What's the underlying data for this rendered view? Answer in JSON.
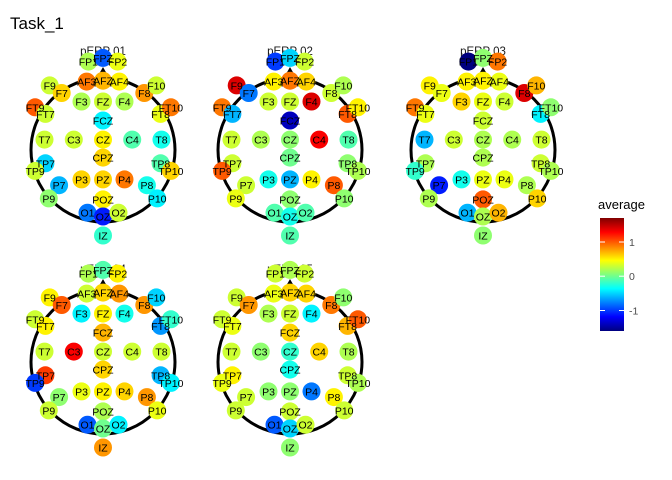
{
  "chart_data": {
    "type": "topographic scalp map",
    "title": "Task_1",
    "legend": {
      "title": "average",
      "ticks": [
        1,
        0,
        -1
      ],
      "range": [
        -1.6,
        1.7
      ],
      "palette": [
        "#00007f",
        "#0000ff",
        "#007fff",
        "#00ffff",
        "#7fff7f",
        "#ffff00",
        "#ff7f00",
        "#ff0000",
        "#7f0000"
      ],
      "position": "right"
    },
    "channels": [
      {
        "name": "FP1",
        "pos": [
          -0.17,
          0.93
        ]
      },
      {
        "name": "FPZ",
        "pos": [
          0.0,
          0.97
        ]
      },
      {
        "name": "FP2",
        "pos": [
          0.17,
          0.93
        ]
      },
      {
        "name": "F9",
        "pos": [
          -0.62,
          0.68
        ]
      },
      {
        "name": "F7",
        "pos": [
          -0.48,
          0.6
        ]
      },
      {
        "name": "AF3",
        "pos": [
          -0.19,
          0.72
        ]
      },
      {
        "name": "AFZ",
        "pos": [
          0.0,
          0.73
        ]
      },
      {
        "name": "AF4",
        "pos": [
          0.19,
          0.72
        ]
      },
      {
        "name": "F8",
        "pos": [
          0.48,
          0.6
        ]
      },
      {
        "name": "F10",
        "pos": [
          0.62,
          0.68
        ]
      },
      {
        "name": "F3",
        "pos": [
          -0.25,
          0.51
        ]
      },
      {
        "name": "FZ",
        "pos": [
          0.0,
          0.51
        ]
      },
      {
        "name": "F4",
        "pos": [
          0.25,
          0.51
        ]
      },
      {
        "name": "FT9",
        "pos": [
          -0.79,
          0.45
        ]
      },
      {
        "name": "FT7",
        "pos": [
          -0.67,
          0.38
        ]
      },
      {
        "name": "FCZ",
        "pos": [
          0.0,
          0.31
        ]
      },
      {
        "name": "FT8",
        "pos": [
          0.67,
          0.38
        ]
      },
      {
        "name": "FT10",
        "pos": [
          0.79,
          0.45
        ]
      },
      {
        "name": "T7",
        "pos": [
          -0.68,
          0.11
        ]
      },
      {
        "name": "C3",
        "pos": [
          -0.34,
          0.11
        ]
      },
      {
        "name": "CZ",
        "pos": [
          0.0,
          0.11
        ]
      },
      {
        "name": "C4",
        "pos": [
          0.34,
          0.11
        ]
      },
      {
        "name": "T8",
        "pos": [
          0.68,
          0.11
        ]
      },
      {
        "name": "CPZ",
        "pos": [
          0.0,
          -0.08
        ]
      },
      {
        "name": "TP7",
        "pos": [
          -0.67,
          -0.14
        ]
      },
      {
        "name": "TP9",
        "pos": [
          -0.79,
          -0.22
        ]
      },
      {
        "name": "TP8",
        "pos": [
          0.67,
          -0.14
        ]
      },
      {
        "name": "TP10",
        "pos": [
          0.79,
          -0.22
        ]
      },
      {
        "name": "P7",
        "pos": [
          -0.51,
          -0.37
        ]
      },
      {
        "name": "P3",
        "pos": [
          -0.25,
          -0.31
        ]
      },
      {
        "name": "PZ",
        "pos": [
          0.0,
          -0.31
        ]
      },
      {
        "name": "P4",
        "pos": [
          0.25,
          -0.31
        ]
      },
      {
        "name": "P8",
        "pos": [
          0.51,
          -0.37
        ]
      },
      {
        "name": "P9",
        "pos": [
          -0.63,
          -0.51
        ]
      },
      {
        "name": "P10",
        "pos": [
          0.63,
          -0.51
        ]
      },
      {
        "name": "POZ",
        "pos": [
          0.0,
          -0.52
        ]
      },
      {
        "name": "O1",
        "pos": [
          -0.18,
          -0.66
        ]
      },
      {
        "name": "OZ",
        "pos": [
          0.0,
          -0.7
        ]
      },
      {
        "name": "O2",
        "pos": [
          0.18,
          -0.66
        ]
      },
      {
        "name": "IZ",
        "pos": [
          0.0,
          -0.9
        ]
      }
    ],
    "panels": [
      {
        "title": "pERP 01",
        "values": {
          "FP1": 0.2,
          "FPZ": -0.9,
          "FP2": 0.4,
          "F9": 0.3,
          "F7": 0.6,
          "AF3": 0.9,
          "AFZ": 0.7,
          "AF4": 0.5,
          "F8": 0.8,
          "F10": 0.3,
          "F3": 0.2,
          "FZ": 0.3,
          "F4": 0.2,
          "FT9": 1.0,
          "FT7": 0.3,
          "FCZ": -0.4,
          "FT8": 0.4,
          "FT10": 0.9,
          "T7": 0.3,
          "C3": 0.3,
          "CZ": 0.5,
          "C4": -0.1,
          "T8": -0.3,
          "CPZ": 0.6,
          "TP7": -0.5,
          "TP9": 0.3,
          "TP8": -0.1,
          "TP10": 0.6,
          "P7": -0.6,
          "P3": 0.6,
          "PZ": 0.6,
          "P4": 0.9,
          "P8": -0.3,
          "P9": 0.1,
          "P10": -0.4,
          "POZ": 0.5,
          "O1": -0.8,
          "OZ": -1.1,
          "O2": 0.3,
          "IZ": -0.2
        }
      },
      {
        "title": "pERP 02",
        "values": {
          "FP1": -1.0,
          "FPZ": -0.5,
          "FP2": 0.3,
          "F9": 1.4,
          "F7": -0.8,
          "AF3": 0.5,
          "AFZ": 0.9,
          "AF4": 0.6,
          "F8": 0.3,
          "F10": 0.2,
          "F3": 0.3,
          "FZ": 0.3,
          "F4": 1.4,
          "FT9": 0.9,
          "FT7": -0.6,
          "FCZ": -1.4,
          "FT8": 1.0,
          "FT10": 0.5,
          "T7": 0.3,
          "C3": 0.2,
          "CZ": 0.1,
          "C4": 1.3,
          "T8": -0.1,
          "CPZ": 0.0,
          "TP7": 0.3,
          "TP9": 1.0,
          "TP8": 0.1,
          "TP10": 0.2,
          "P7": 0.3,
          "P3": -0.3,
          "PZ": -0.6,
          "P4": 0.5,
          "P8": 1.0,
          "P9": 0.4,
          "P10": 0.1,
          "POZ": 0.1,
          "O1": -0.1,
          "OZ": -0.3,
          "O2": -0.1,
          "IZ": -0.1
        }
      },
      {
        "title": "pERP 03",
        "values": {
          "FP1": -1.6,
          "FPZ": 0.1,
          "FP2": 0.9,
          "F9": 0.5,
          "F7": 0.4,
          "AF3": 0.5,
          "AFZ": 0.5,
          "AF4": 0.4,
          "F8": 1.4,
          "F10": 0.7,
          "F3": 0.6,
          "FZ": 0.4,
          "F4": 0.3,
          "FT9": 0.9,
          "FT7": 0.4,
          "FCZ": 0.3,
          "FT8": -0.4,
          "FT10": 0.1,
          "T7": -0.6,
          "C3": 0.3,
          "CZ": 0.2,
          "C4": 0.2,
          "T8": 0.3,
          "CPZ": 0.2,
          "TP7": 0.2,
          "TP9": -0.2,
          "TP8": 0.3,
          "TP10": 0.2,
          "P7": -1.1,
          "P3": -0.3,
          "PZ": 0.4,
          "P4": 0.4,
          "P8": 0.2,
          "P9": 0.2,
          "P10": 0.6,
          "POZ": 1.0,
          "O1": -0.6,
          "OZ": 0.2,
          "O2": 0.7,
          "IZ": 0.1
        }
      },
      {
        "title": "pERP 04",
        "values": {
          "FP1": 0.2,
          "FPZ": -0.1,
          "FP2": 0.5,
          "F9": 0.5,
          "F7": 1.0,
          "AF3": 0.3,
          "AFZ": 0.6,
          "AF4": 0.8,
          "F8": 0.8,
          "F10": -0.5,
          "F3": -0.4,
          "FZ": 0.5,
          "F4": -0.3,
          "FT9": 0.3,
          "FT7": 0.5,
          "FCZ": 0.7,
          "FT8": -0.7,
          "FT10": -0.2,
          "T7": 0.3,
          "C3": 1.3,
          "CZ": 0.3,
          "C4": 0.3,
          "T8": 0.3,
          "CPZ": 0.6,
          "TP7": 1.1,
          "TP9": -1.0,
          "TP8": -0.6,
          "TP10": -0.4,
          "P7": 0.1,
          "P3": 0.4,
          "PZ": 0.5,
          "P4": 0.6,
          "P8": 0.8,
          "P9": 0.3,
          "P10": 0.4,
          "POZ": 0.2,
          "O1": -0.9,
          "OZ": 0.0,
          "O2": -0.4,
          "IZ": 0.8
        }
      },
      {
        "title": "pERP 05",
        "values": {
          "FP1": 0.3,
          "FPZ": 0.2,
          "FP2": 0.3,
          "F9": 0.3,
          "F7": 0.8,
          "AF3": 0.4,
          "AFZ": 0.6,
          "AF4": 0.6,
          "F8": 0.9,
          "F10": 0.1,
          "F3": 0.2,
          "FZ": 0.3,
          "F4": -0.4,
          "FT9": 0.3,
          "FT7": 0.4,
          "FCZ": 0.6,
          "FT8": 0.7,
          "FT10": 1.0,
          "T7": 0.3,
          "C3": 0.1,
          "CZ": -0.2,
          "C4": 0.6,
          "T8": 0.2,
          "CPZ": -0.3,
          "TP7": 0.5,
          "TP9": 0.4,
          "TP8": 0.3,
          "TP10": 0.2,
          "P7": 0.3,
          "P3": 0.1,
          "PZ": 0.1,
          "P4": -0.8,
          "P8": 0.5,
          "P9": 0.3,
          "P10": 0.3,
          "POZ": 0.3,
          "O1": -0.9,
          "OZ": -0.5,
          "O2": 0.3,
          "IZ": 0.1
        }
      }
    ]
  }
}
